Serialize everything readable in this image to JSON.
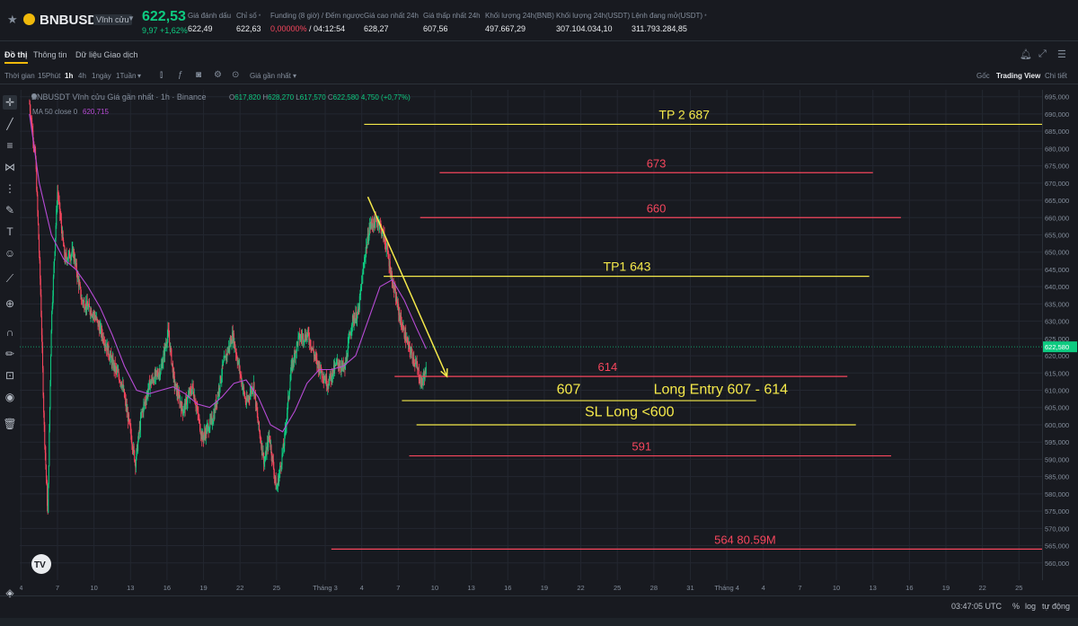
{
  "ticker": {
    "symbol": "BNBUSDT",
    "contract_type": "Vĩnh cửu",
    "last_price": "622,53",
    "change": "9,97 +1,62%",
    "stats": [
      {
        "label": "Giá đánh dấu",
        "value": "622,49"
      },
      {
        "label": "Chỉ số",
        "value": "622,63"
      },
      {
        "label": "Funding (8 giờ) / Đếm ngược",
        "value_a": "0,00000%",
        "value_b": " / 04:12:54"
      },
      {
        "label": "Giá cao nhất 24h",
        "value": "628,27"
      },
      {
        "label": "Giá thấp nhất 24h",
        "value": "607,56"
      },
      {
        "label": "Khối lượng 24h(BNB)",
        "value": "497.667,29"
      },
      {
        "label": "Khối lượng 24h(USDT)",
        "value": "307.104.034,10"
      },
      {
        "label": "Lệnh đang mở(USDT)",
        "value": "311.793.284,85"
      }
    ]
  },
  "tabs": [
    "Đồ thị",
    "Thông tin",
    "Dữ liệu Giao dịch"
  ],
  "toolbar": {
    "time_label": "Thời gian",
    "intervals": [
      "15Phút",
      "1h",
      "4h",
      "1ngày",
      "1Tuần"
    ],
    "active_interval": "1h",
    "price_type": "Giá gần nhất",
    "views": [
      "Gốc",
      "Trading View",
      "Chi tiết"
    ],
    "active_view": "Trading View"
  },
  "chart_header": {
    "title": "BNBUSDT Vĩnh cửu Giá gần nhất · 1h · Binance",
    "ohlc": [
      {
        "k": "O",
        "v": "617,820"
      },
      {
        "k": "H",
        "v": "628,270"
      },
      {
        "k": "L",
        "v": "617,570"
      },
      {
        "k": "C",
        "v": "622,580"
      }
    ],
    "change": "4,750 (+0,77%)",
    "ma_label": "MA 50 close 0",
    "ma_value": "620,715"
  },
  "colors": {
    "up": "#0ecb81",
    "down": "#f6465d",
    "ma": "#b84bd6",
    "yellow_line": "#f5e94a",
    "red_line": "#f6465d",
    "grid": "#232730"
  },
  "chart_data": {
    "type": "candlestick",
    "ylim": [
      555,
      697
    ],
    "price_ticks": [
      560,
      565,
      570,
      575,
      580,
      585,
      590,
      595,
      600,
      605,
      610,
      615,
      620,
      625,
      630,
      635,
      640,
      645,
      650,
      655,
      660,
      665,
      670,
      675,
      680,
      685,
      690,
      695
    ],
    "current_price": "622,580",
    "current_price_value": 622.58,
    "x_ticks": [
      {
        "label": "4",
        "day": 4
      },
      {
        "label": "7",
        "day": 7
      },
      {
        "label": "10",
        "day": 10
      },
      {
        "label": "13",
        "day": 13
      },
      {
        "label": "16",
        "day": 16
      },
      {
        "label": "19",
        "day": 19
      },
      {
        "label": "22",
        "day": 22
      },
      {
        "label": "25",
        "day": 25
      },
      {
        "label": "Tháng 3",
        "day": 29
      },
      {
        "label": "4",
        "day": 32
      },
      {
        "label": "7",
        "day": 35
      },
      {
        "label": "10",
        "day": 38
      },
      {
        "label": "13",
        "day": 41
      },
      {
        "label": "16",
        "day": 44
      },
      {
        "label": "19",
        "day": 47
      },
      {
        "label": "22",
        "day": 50
      },
      {
        "label": "25",
        "day": 53
      },
      {
        "label": "28",
        "day": 56
      },
      {
        "label": "31",
        "day": 59
      },
      {
        "label": "Tháng 4",
        "day": 62
      },
      {
        "label": "4",
        "day": 65
      },
      {
        "label": "7",
        "day": 68
      },
      {
        "label": "10",
        "day": 71
      },
      {
        "label": "13",
        "day": 74
      },
      {
        "label": "16",
        "day": 77
      },
      {
        "label": "19",
        "day": 80
      },
      {
        "label": "22",
        "day": 83
      },
      {
        "label": "25",
        "day": 86
      }
    ],
    "xlim": [
      3.9,
      87.9
    ],
    "price_path": [
      [
        4.7,
        693
      ],
      [
        5.2,
        677
      ],
      [
        5.6,
        640
      ],
      [
        5.9,
        600
      ],
      [
        6.2,
        574
      ],
      [
        6.5,
        630
      ],
      [
        7.0,
        668
      ],
      [
        7.6,
        648
      ],
      [
        8.3,
        650
      ],
      [
        9.0,
        636
      ],
      [
        10.0,
        632
      ],
      [
        10.8,
        625
      ],
      [
        11.5,
        618
      ],
      [
        12.3,
        612
      ],
      [
        13.0,
        598
      ],
      [
        13.4,
        589
      ],
      [
        13.9,
        603
      ],
      [
        14.6,
        612
      ],
      [
        15.5,
        616
      ],
      [
        16.1,
        627
      ],
      [
        16.6,
        612
      ],
      [
        17.3,
        604
      ],
      [
        18.1,
        611
      ],
      [
        18.9,
        596
      ],
      [
        19.8,
        602
      ],
      [
        20.6,
        617
      ],
      [
        21.4,
        626
      ],
      [
        22.0,
        615
      ],
      [
        22.5,
        606
      ],
      [
        23.1,
        612
      ],
      [
        23.5,
        600
      ],
      [
        24.0,
        589
      ],
      [
        24.4,
        597
      ],
      [
        25.0,
        581
      ],
      [
        25.6,
        594
      ],
      [
        26.2,
        616
      ],
      [
        26.8,
        625
      ],
      [
        27.6,
        626
      ],
      [
        28.3,
        618
      ],
      [
        29.2,
        612
      ],
      [
        30.0,
        618
      ],
      [
        30.6,
        616
      ],
      [
        31.2,
        630
      ],
      [
        31.7,
        632
      ],
      [
        32.3,
        650
      ],
      [
        32.7,
        658
      ],
      [
        33.4,
        659
      ],
      [
        34.0,
        652
      ],
      [
        34.6,
        640
      ],
      [
        35.2,
        630
      ],
      [
        35.8,
        623
      ],
      [
        36.4,
        618
      ],
      [
        36.9,
        612
      ],
      [
        37.3,
        616
      ]
    ],
    "ma_path": [
      [
        4.7,
        690
      ],
      [
        5.5,
        670
      ],
      [
        6.5,
        655
      ],
      [
        7.5,
        648
      ],
      [
        8.5,
        645
      ],
      [
        9.5,
        640
      ],
      [
        10.5,
        634
      ],
      [
        11.5,
        626
      ],
      [
        12.5,
        617
      ],
      [
        13.5,
        610
      ],
      [
        14.5,
        609
      ],
      [
        15.5,
        610
      ],
      [
        16.5,
        611
      ],
      [
        17.5,
        609
      ],
      [
        18.5,
        606
      ],
      [
        19.5,
        605
      ],
      [
        20.5,
        608
      ],
      [
        21.5,
        612
      ],
      [
        22.5,
        613
      ],
      [
        23.5,
        608
      ],
      [
        24.5,
        600
      ],
      [
        25.5,
        598
      ],
      [
        26.5,
        604
      ],
      [
        27.5,
        612
      ],
      [
        28.5,
        616
      ],
      [
        29.5,
        616
      ],
      [
        30.5,
        617
      ],
      [
        31.5,
        620
      ],
      [
        32.5,
        630
      ],
      [
        33.5,
        640
      ],
      [
        34.5,
        642
      ],
      [
        35.5,
        636
      ],
      [
        36.5,
        628
      ],
      [
        37.3,
        622
      ]
    ],
    "levels": [
      {
        "label": "TP 2 687",
        "price": 687,
        "x_start": 32.2,
        "x_end": 87.9,
        "color": "yellow",
        "label_at": 58.5,
        "label_above": true
      },
      {
        "label": "673",
        "price": 673,
        "x_start": 38.4,
        "x_end": 74.0,
        "color": "red",
        "label_at": 56.2,
        "label_above": true
      },
      {
        "label": "660",
        "price": 660,
        "x_start": 36.8,
        "x_end": 76.3,
        "color": "red",
        "label_at": 56.2,
        "label_above": true
      },
      {
        "label": "TP1 643",
        "price": 643,
        "x_start": 33.8,
        "x_end": 73.7,
        "color": "yellow",
        "label_at": 53.8,
        "label_above": true
      },
      {
        "label": "614",
        "price": 614,
        "x_start": 34.7,
        "x_end": 71.9,
        "color": "red",
        "label_at": 52.2,
        "label_above": true
      },
      {
        "label": "",
        "price": 607,
        "x_start": 35.3,
        "x_end": 64.4,
        "color": "yellow",
        "label_at": 0,
        "label_above": true
      },
      {
        "label": "",
        "price": 600,
        "x_start": 36.5,
        "x_end": 72.6,
        "color": "yellow",
        "label_at": 0,
        "label_above": true
      },
      {
        "label": "591",
        "price": 591,
        "x_start": 35.9,
        "x_end": 75.5,
        "color": "red",
        "label_at": 55.0,
        "label_above": true
      },
      {
        "label": "564 80.59M",
        "price": 564,
        "x_start": 29.5,
        "x_end": 87.9,
        "color": "red",
        "label_at": 63.5,
        "label_above": true
      }
    ],
    "annotations": [
      {
        "text": "607",
        "x": 49.0,
        "price": 609,
        "color": "yellow"
      },
      {
        "text": "Long Entry 607 - 614",
        "x": 61.5,
        "price": 609,
        "color": "yellow"
      },
      {
        "text": "SL Long <600",
        "x": 54.0,
        "price": 602.5,
        "color": "yellow"
      }
    ],
    "arrow": {
      "from": [
        32.5,
        666
      ],
      "to": [
        39.0,
        614
      ]
    }
  },
  "statusbar": {
    "time": "03:47:05 UTC",
    "percent": "%",
    "log": "log",
    "auto": "tự động"
  }
}
